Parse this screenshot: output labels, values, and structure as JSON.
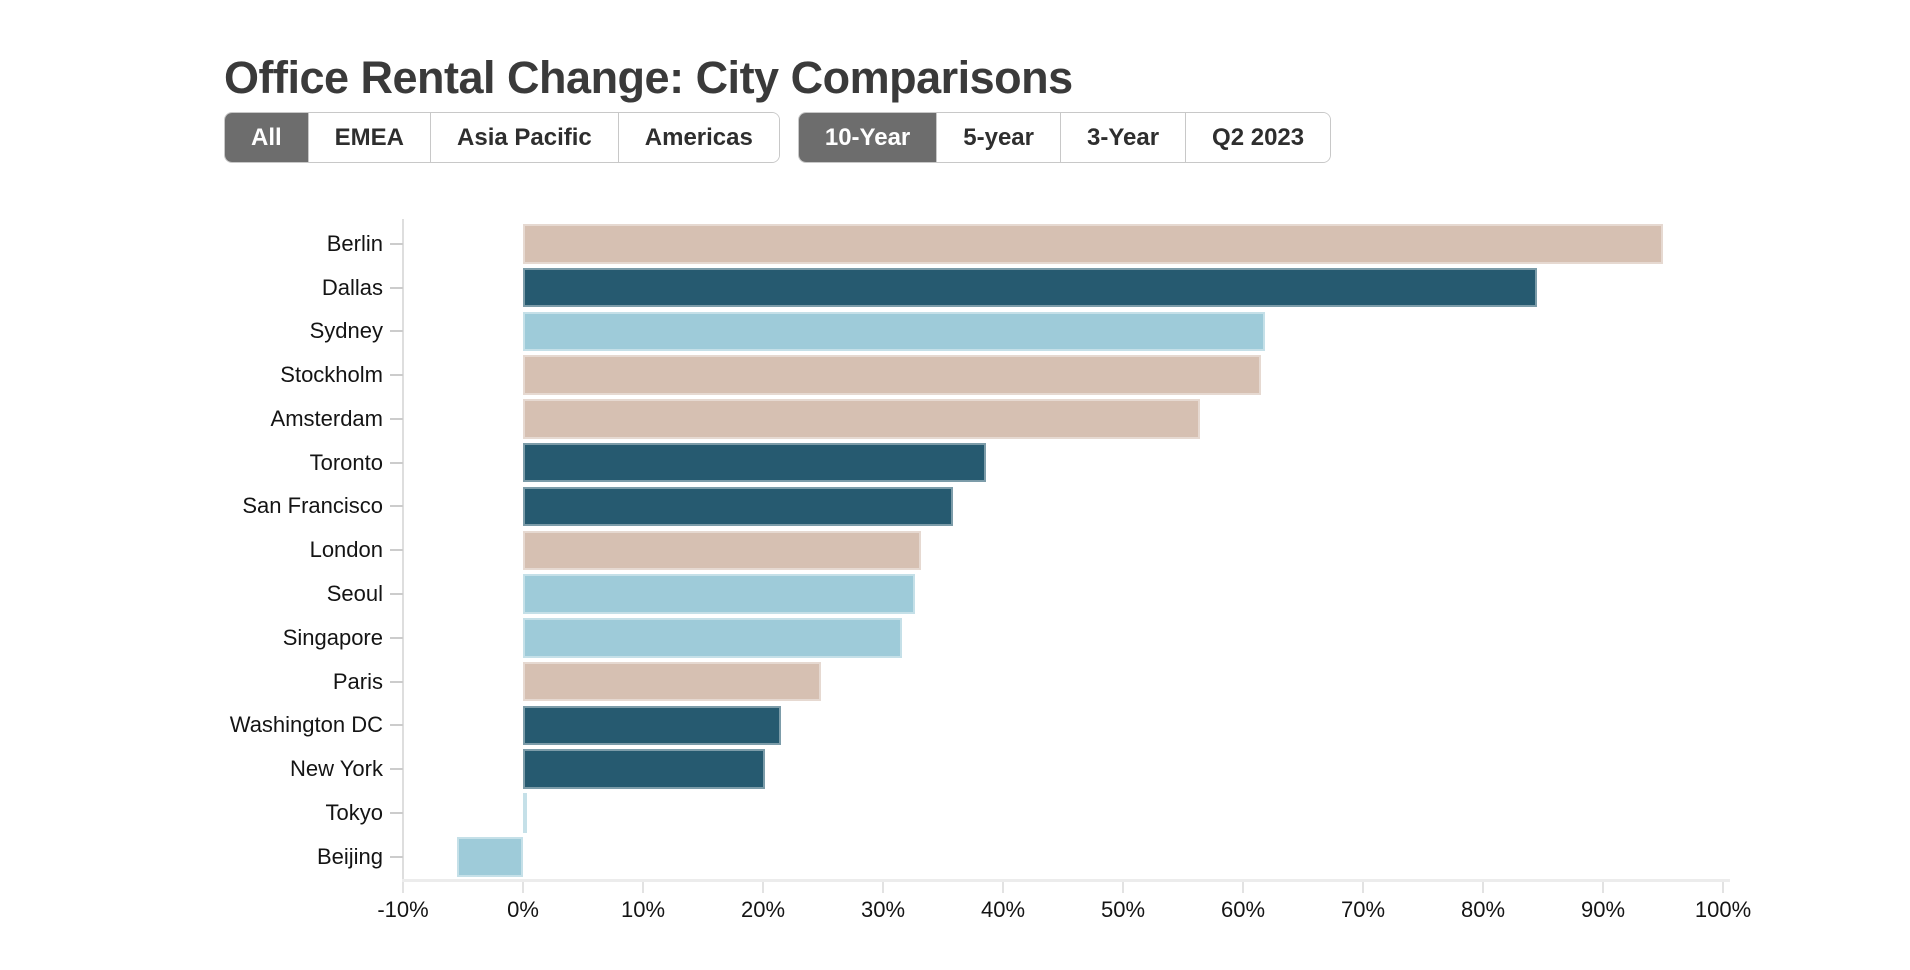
{
  "page": {
    "title": "Office Rental Change: City Comparisons"
  },
  "filters": {
    "region": {
      "options": [
        {
          "key": "all",
          "label": "All",
          "selected": true
        },
        {
          "key": "emea",
          "label": "EMEA",
          "selected": false
        },
        {
          "key": "asia-pacific",
          "label": "Asia Pacific",
          "selected": false
        },
        {
          "key": "americas",
          "label": "Americas",
          "selected": false
        }
      ]
    },
    "period": {
      "options": [
        {
          "key": "10-year",
          "label": "10-Year",
          "selected": true
        },
        {
          "key": "5-year",
          "label": "5-year",
          "selected": false
        },
        {
          "key": "3-year",
          "label": "3-Year",
          "selected": false
        },
        {
          "key": "q2-2023",
          "label": "Q2 2023",
          "selected": false
        }
      ]
    }
  },
  "chart_data": {
    "type": "bar",
    "orientation": "horizontal",
    "title": "Office Rental Change: City Comparisons",
    "categories": [
      "Berlin",
      "Dallas",
      "Sydney",
      "Stockholm",
      "Amsterdam",
      "Toronto",
      "San Francisco",
      "London",
      "Seoul",
      "Singapore",
      "Paris",
      "Washington DC",
      "New York",
      "Tokyo",
      "Beijing"
    ],
    "values": [
      95.0,
      84.5,
      61.8,
      61.5,
      56.4,
      38.6,
      35.8,
      33.2,
      32.7,
      31.6,
      24.8,
      21.5,
      20.2,
      0.3,
      -5.5
    ],
    "regions": [
      "EMEA",
      "Americas",
      "Asia Pacific",
      "EMEA",
      "EMEA",
      "Americas",
      "Americas",
      "EMEA",
      "Asia Pacific",
      "Asia Pacific",
      "EMEA",
      "Americas",
      "Americas",
      "Asia Pacific",
      "Asia Pacific"
    ],
    "region_colors": {
      "EMEA": "#d6c0b2",
      "Americas": "#265a70",
      "Asia Pacific": "#9ecbd9"
    },
    "value_unit": "%",
    "xlim": [
      -10,
      100
    ],
    "x_tick_step": 10,
    "x_tick_labels": [
      "-10%",
      "0%",
      "10%",
      "20%",
      "30%",
      "40%",
      "50%",
      "60%",
      "70%",
      "80%",
      "90%",
      "100%"
    ],
    "grid": false,
    "legend": false
  },
  "ui_colors": {
    "selected_button_bg": "#6d6d6d",
    "selected_button_text": "#ffffff",
    "button_border": "#c8c8c8",
    "axis_line": "#dedede",
    "title_text": "#3a3a3a"
  }
}
